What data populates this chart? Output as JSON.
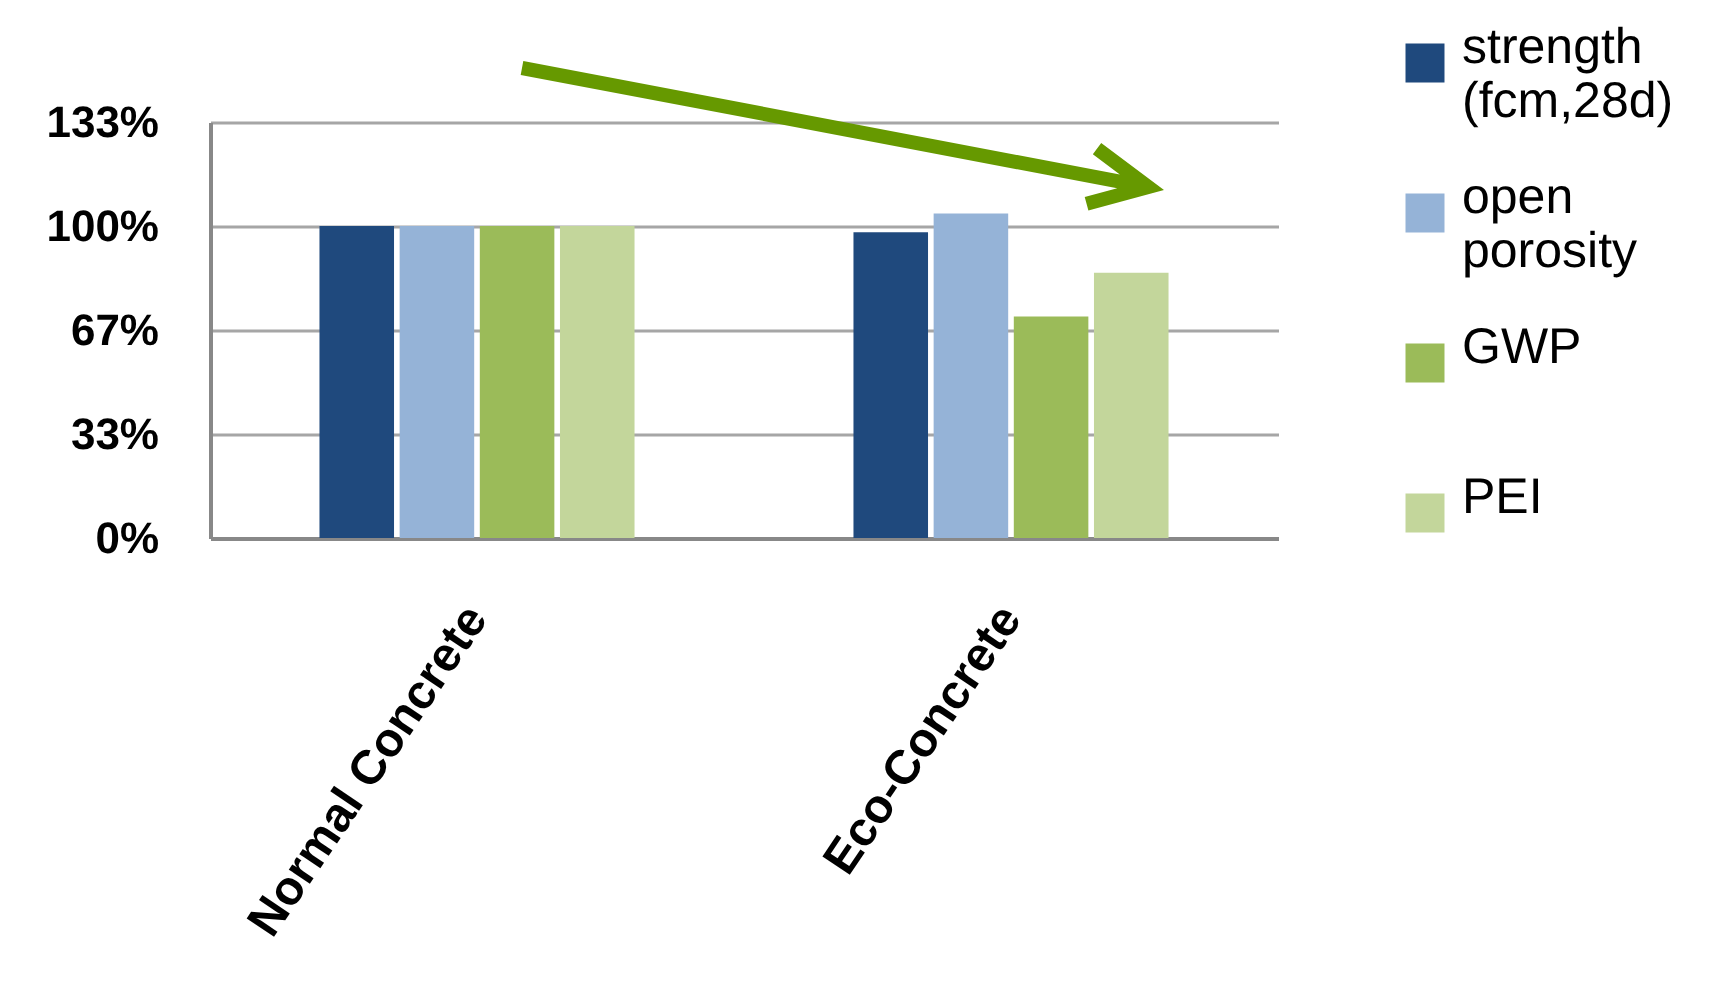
{
  "chart_data": {
    "type": "bar",
    "categories": [
      "Normal Concrete",
      "Eco-Concrete"
    ],
    "series": [
      {
        "name": "strength (fcm,28d)",
        "color": "#1f497d",
        "values": [
          100,
          98
        ]
      },
      {
        "name": "open porosity",
        "color": "#95b3d7",
        "values": [
          100,
          104
        ]
      },
      {
        "name": "GWP",
        "color": "#9bbb59",
        "values": [
          100,
          71
        ]
      },
      {
        "name": "PEI",
        "color": "#c3d69b",
        "values": [
          100,
          85
        ]
      }
    ],
    "ylim": [
      0,
      133.33
    ],
    "yticks": [
      {
        "value": 0,
        "label": "0%"
      },
      {
        "value": 33.33,
        "label": "33%"
      },
      {
        "value": 66.67,
        "label": "67%"
      },
      {
        "value": 100,
        "label": "100%"
      },
      {
        "value": 133.33,
        "label": "133%"
      }
    ],
    "grid": "y",
    "legend": "right"
  }
}
